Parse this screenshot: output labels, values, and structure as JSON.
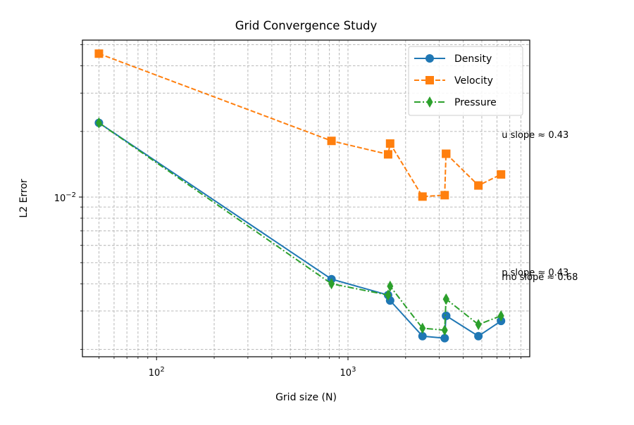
{
  "chart_data": {
    "type": "line",
    "title": "Grid Convergence Study",
    "xlabel": "Grid size (N)",
    "ylabel": "L2 Error",
    "xscale": "log",
    "yscale": "log",
    "xlim": [
      41,
      8900
    ],
    "ylim": [
      0.00185,
      0.0525
    ],
    "grid": true,
    "legend_position": "top-right",
    "x_ticks": [
      {
        "value": 100,
        "base": "10",
        "exp": "2"
      },
      {
        "value": 1000,
        "base": "10",
        "exp": "3"
      }
    ],
    "y_ticks": [
      {
        "value": 0.01,
        "base": "10",
        "exp": "−2"
      }
    ],
    "series": [
      {
        "name": "Density",
        "color": "#1f77b4",
        "line_style": "solid",
        "marker": "circle",
        "x": [
          50,
          820,
          1620,
          1660,
          2450,
          3200,
          3250,
          3260,
          4800,
          6300
        ],
        "y": [
          0.0219,
          0.0042,
          0.00355,
          0.00335,
          0.0023,
          0.00225,
          0.00285,
          0.00285,
          0.0023,
          0.0027
        ]
      },
      {
        "name": "Velocity",
        "color": "#ff7f0e",
        "line_style": "dashed",
        "marker": "square",
        "x": [
          50,
          820,
          1620,
          1660,
          2450,
          3200,
          3250,
          3260,
          4800,
          6300
        ],
        "y": [
          0.0455,
          0.0181,
          0.0157,
          0.0176,
          0.01005,
          0.0102,
          0.0158,
          0.0158,
          0.0113,
          0.0127
        ]
      },
      {
        "name": "Pressure",
        "color": "#2ca02c",
        "line_style": "dashdot",
        "marker": "thin_diamond",
        "x": [
          50,
          820,
          1620,
          1660,
          2450,
          3200,
          3250,
          3260,
          4800,
          6300
        ],
        "y": [
          0.0219,
          0.004,
          0.00355,
          0.0039,
          0.0025,
          0.00245,
          0.0034,
          0.0034,
          0.0026,
          0.00285
        ]
      }
    ],
    "annotations": [
      {
        "text": "u slope ≈ 0.43",
        "x": 6300,
        "y": 0.0187
      },
      {
        "text": "p slope ≈ 0.43",
        "x": 6300,
        "y": 0.00436
      },
      {
        "text": "rho slope ≈ 0.68",
        "x": 6300,
        "y": 0.00416
      }
    ]
  }
}
